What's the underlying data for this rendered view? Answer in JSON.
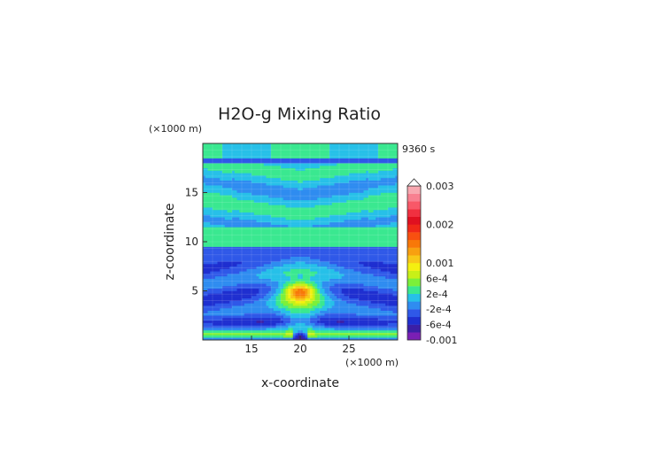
{
  "chart_data": {
    "type": "heatmap",
    "title": "H2O-g Mixing Ratio",
    "time_label": "9360 s",
    "y_unit": "(×1000 m)",
    "x_unit": "(×1000 m)",
    "xlabel": "x-coordinate",
    "ylabel": "z-coordinate",
    "xlim": [
      10,
      30
    ],
    "ylim": [
      0,
      20
    ],
    "xticks": [
      15,
      20,
      25
    ],
    "yticks": [
      5,
      10,
      15
    ],
    "colorbar": {
      "labels": [
        "0.003",
        "0.002",
        "0.001",
        "6e-4",
        "2e-4",
        "-2e-4",
        "-6e-4",
        "-0.001"
      ],
      "label_values": [
        0.003,
        0.002,
        0.001,
        0.0006,
        0.0002,
        -0.0002,
        -0.0006,
        -0.001
      ],
      "levels": [
        -0.001,
        -0.0008,
        -0.0006,
        -0.0004,
        -0.0002,
        0,
        0.0002,
        0.0004,
        0.0006,
        0.0008,
        0.001,
        0.0012,
        0.0014,
        0.0016,
        0.0018,
        0.002,
        0.0022,
        0.0024,
        0.0026,
        0.0028,
        0.003
      ],
      "colors": [
        "#7a1fb4",
        "#3b1fa6",
        "#1f2fd0",
        "#2f58e8",
        "#2f8cf0",
        "#27c0e8",
        "#3ae890",
        "#7cf03a",
        "#c8f018",
        "#f4f010",
        "#f8c818",
        "#f8a010",
        "#f87808",
        "#f85010",
        "#f02818",
        "#e01020",
        "#f03040",
        "#f85868",
        "#f88090",
        "#f8a8b0"
      ]
    },
    "field_description": "gridded mixing-ratio anomaly field; values reconstructed approximately from contour colors"
  }
}
